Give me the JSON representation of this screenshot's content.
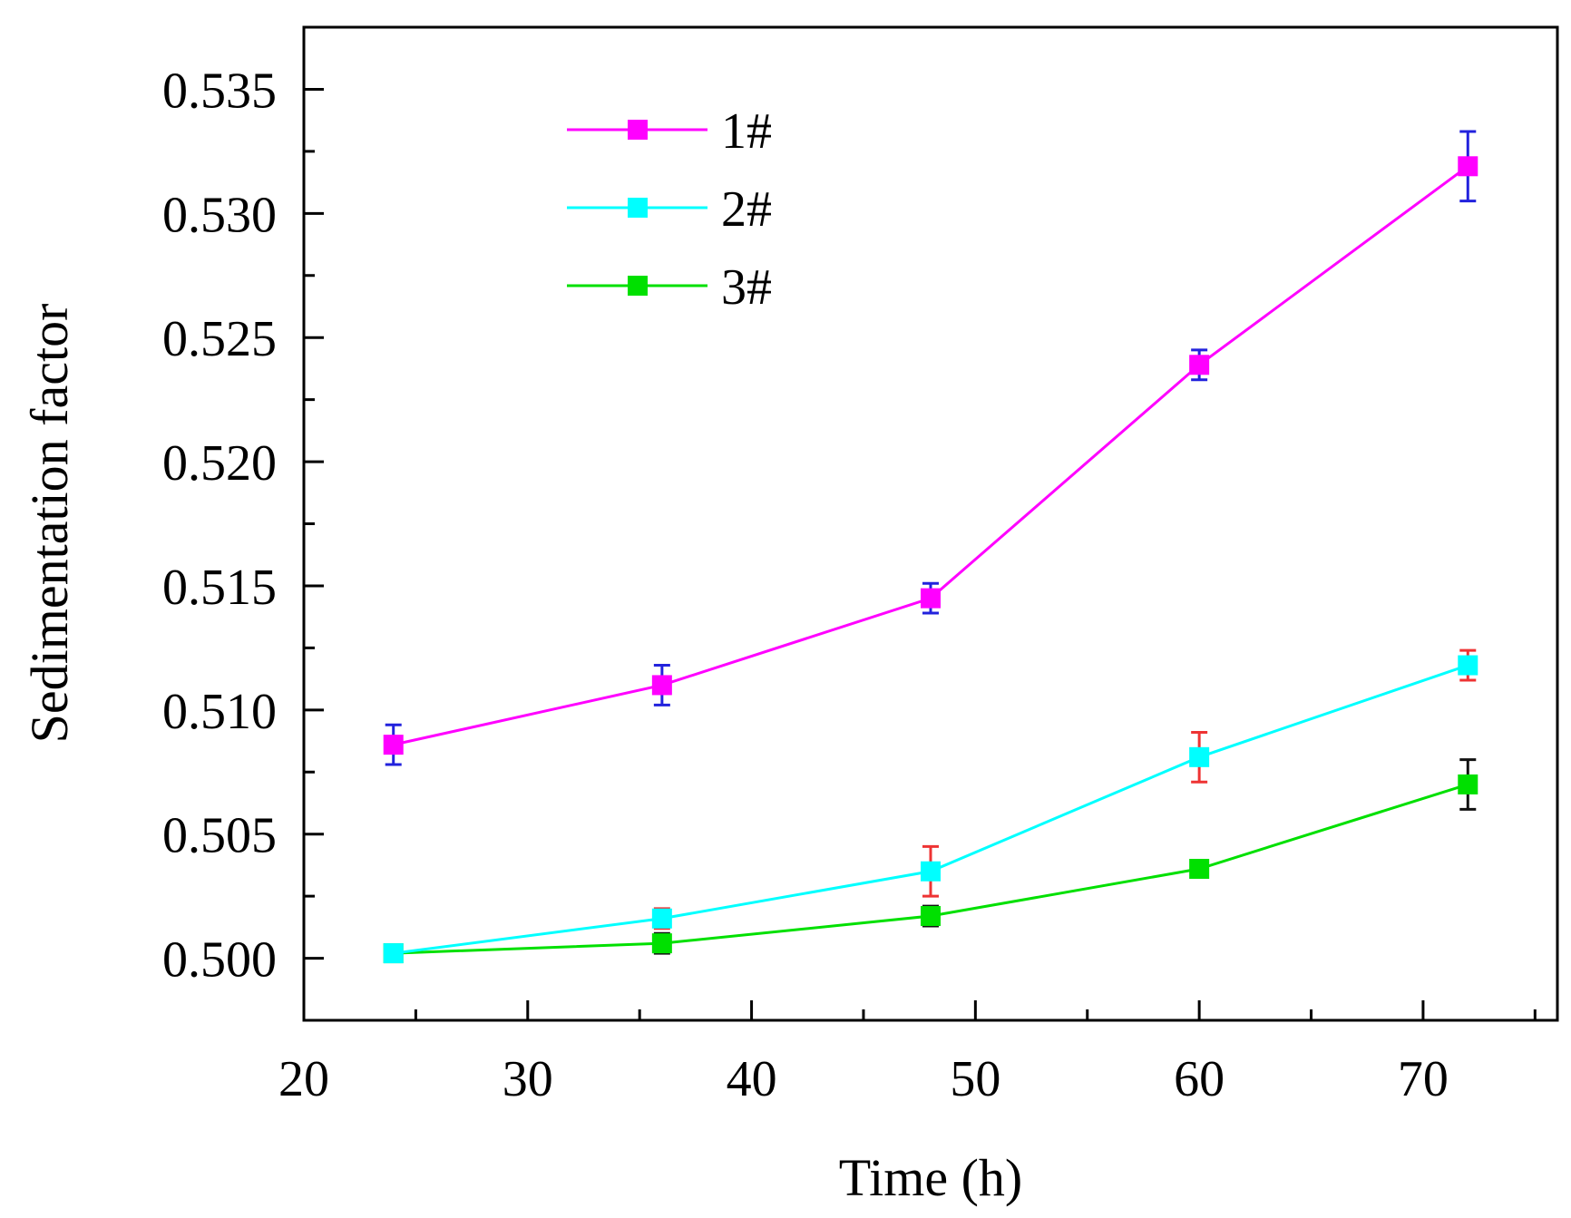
{
  "chart_data": {
    "type": "line",
    "title": "",
    "xlabel": "Time (h)",
    "ylabel": "Sedimentation factor",
    "xlim": [
      20,
      76
    ],
    "ylim": [
      0.4975,
      0.5375
    ],
    "xticks": [
      20,
      30,
      40,
      50,
      60,
      70
    ],
    "xtick_labels": [
      "20",
      "30",
      "40",
      "50",
      "60",
      "70"
    ],
    "yticks": [
      0.5,
      0.505,
      0.51,
      0.515,
      0.52,
      0.525,
      0.53,
      0.535
    ],
    "ytick_labels": [
      "0.500",
      "0.505",
      "0.510",
      "0.515",
      "0.520",
      "0.525",
      "0.530",
      "0.535"
    ],
    "grid": false,
    "legend_position": "top-left",
    "x": [
      24,
      36,
      48,
      60,
      72
    ],
    "series": [
      {
        "name": "1#",
        "color": "#ff00ff",
        "error_color": "#2222dd",
        "marker": "square",
        "values": [
          0.5086,
          0.511,
          0.5145,
          0.5239,
          0.5319
        ],
        "errors": [
          0.0008,
          0.0008,
          0.0006,
          0.0006,
          0.0014
        ]
      },
      {
        "name": "2#",
        "color": "#00ffff",
        "error_color": "#ee3333",
        "marker": "square",
        "values": [
          0.5002,
          0.5016,
          0.5035,
          0.5081,
          0.5118
        ],
        "errors": [
          0.0002,
          0.0004,
          0.001,
          0.001,
          0.0006
        ]
      },
      {
        "name": "3#",
        "color": "#00e000",
        "error_color": "#111111",
        "marker": "square",
        "values": [
          0.5002,
          0.5006,
          0.5017,
          0.5036,
          0.507
        ],
        "errors": [
          0.0002,
          0.0004,
          0.0004,
          0.0003,
          0.001
        ]
      }
    ]
  }
}
